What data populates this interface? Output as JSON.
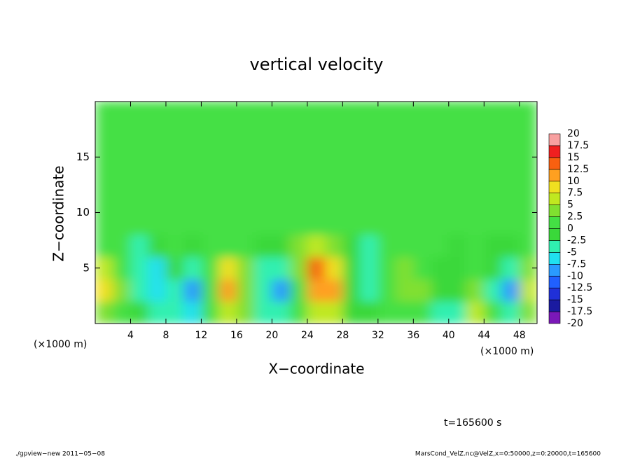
{
  "chart_data": {
    "type": "heatmap",
    "title": "vertical velocity",
    "x_label": "X−coordinate",
    "y_label": "Z−coordinate",
    "x_unit_left": "(×1000 m)",
    "x_unit_right": "(×1000 m)",
    "time_note": "t=165600 s",
    "footer_left": "./gpview−new  2011−05−08",
    "footer_right": "MarsCond_VelZ.nc@VelZ,x=0:50000,z=0:20000,t=165600",
    "xlim": [
      0,
      50
    ],
    "ylim": [
      0,
      20
    ],
    "xticks": [
      4,
      8,
      12,
      16,
      20,
      24,
      28,
      32,
      36,
      40,
      44,
      48
    ],
    "yticks": [
      5,
      10,
      15
    ],
    "x_edges": [
      0,
      2,
      4,
      6,
      8,
      10,
      12,
      14,
      16,
      18,
      20,
      22,
      24,
      26,
      28,
      30,
      32,
      34,
      36,
      38,
      40,
      42,
      44,
      46,
      48,
      50
    ],
    "z_edges": [
      0,
      2,
      4,
      6,
      8,
      10,
      12,
      14,
      16,
      18,
      20
    ],
    "values": [
      [
        4,
        2,
        -2,
        -3,
        -4,
        -6,
        1,
        5,
        4,
        -3,
        -4,
        2,
        6,
        5,
        -2,
        -1,
        1,
        2,
        0,
        -3,
        -4,
        7,
        0,
        -4,
        3
      ],
      [
        8,
        3,
        -5,
        -7,
        -4,
        -10,
        2,
        12,
        4,
        -4,
        -8,
        2,
        10,
        12,
        -2,
        -4,
        2,
        4,
        3,
        -2,
        -2,
        4,
        -3,
        -8,
        6
      ],
      [
        7,
        2,
        -3,
        -6,
        -2,
        -5,
        1,
        8,
        3,
        -3,
        -5,
        3,
        13,
        9,
        -1,
        -5,
        0,
        3,
        2,
        -1,
        -1,
        2,
        -2,
        -4,
        4
      ],
      [
        2,
        1,
        -3,
        -2,
        0,
        -1,
        1,
        2,
        1,
        -2,
        -2,
        3,
        6,
        4,
        -2,
        -3,
        0,
        1,
        0,
        0,
        -2,
        0,
        -1,
        -2,
        1
      ],
      [
        1,
        0,
        1,
        1,
        2,
        1,
        0,
        1,
        0,
        1,
        0,
        1,
        2,
        1,
        0,
        1,
        0,
        1,
        0,
        0,
        0,
        1,
        0,
        1,
        1
      ],
      [
        1,
        1,
        2,
        1,
        1,
        0,
        1,
        2,
        1,
        1,
        0,
        1,
        1,
        2,
        1,
        0,
        1,
        1,
        1,
        0,
        1,
        1,
        1,
        0,
        1
      ],
      [
        1,
        1,
        1,
        2,
        1,
        1,
        1,
        1,
        1,
        0,
        1,
        1,
        1,
        1,
        1,
        1,
        1,
        0,
        1,
        1,
        1,
        1,
        0,
        1,
        1
      ],
      [
        1,
        1,
        1,
        1,
        1,
        1,
        0,
        1,
        1,
        1,
        1,
        1,
        1,
        1,
        1,
        1,
        1,
        1,
        0,
        1,
        1,
        1,
        1,
        1,
        1
      ],
      [
        1,
        1,
        1,
        1,
        1,
        1,
        1,
        1,
        1,
        1,
        1,
        1,
        1,
        1,
        1,
        1,
        1,
        1,
        1,
        1,
        1,
        1,
        1,
        1,
        1
      ],
      [
        1,
        1,
        0,
        1,
        1,
        1,
        1,
        1,
        0,
        1,
        1,
        1,
        1,
        1,
        1,
        0,
        1,
        1,
        1,
        1,
        1,
        1,
        0,
        1,
        1
      ]
    ],
    "levels": [
      -20,
      -17.5,
      -15,
      -12.5,
      -10,
      -7.5,
      -5,
      -2.5,
      0,
      2.5,
      5,
      7.5,
      10,
      12.5,
      15,
      17.5,
      20
    ],
    "colors": [
      "#7a18b8",
      "#1a1aa0",
      "#2030d8",
      "#2060ff",
      "#2a9aff",
      "#20e0f0",
      "#30f0b0",
      "#3ad83a",
      "#44e044",
      "#80e030",
      "#c0e820",
      "#f0e020",
      "#ffa020",
      "#f86010",
      "#f02020",
      "#f8a0a0"
    ]
  }
}
